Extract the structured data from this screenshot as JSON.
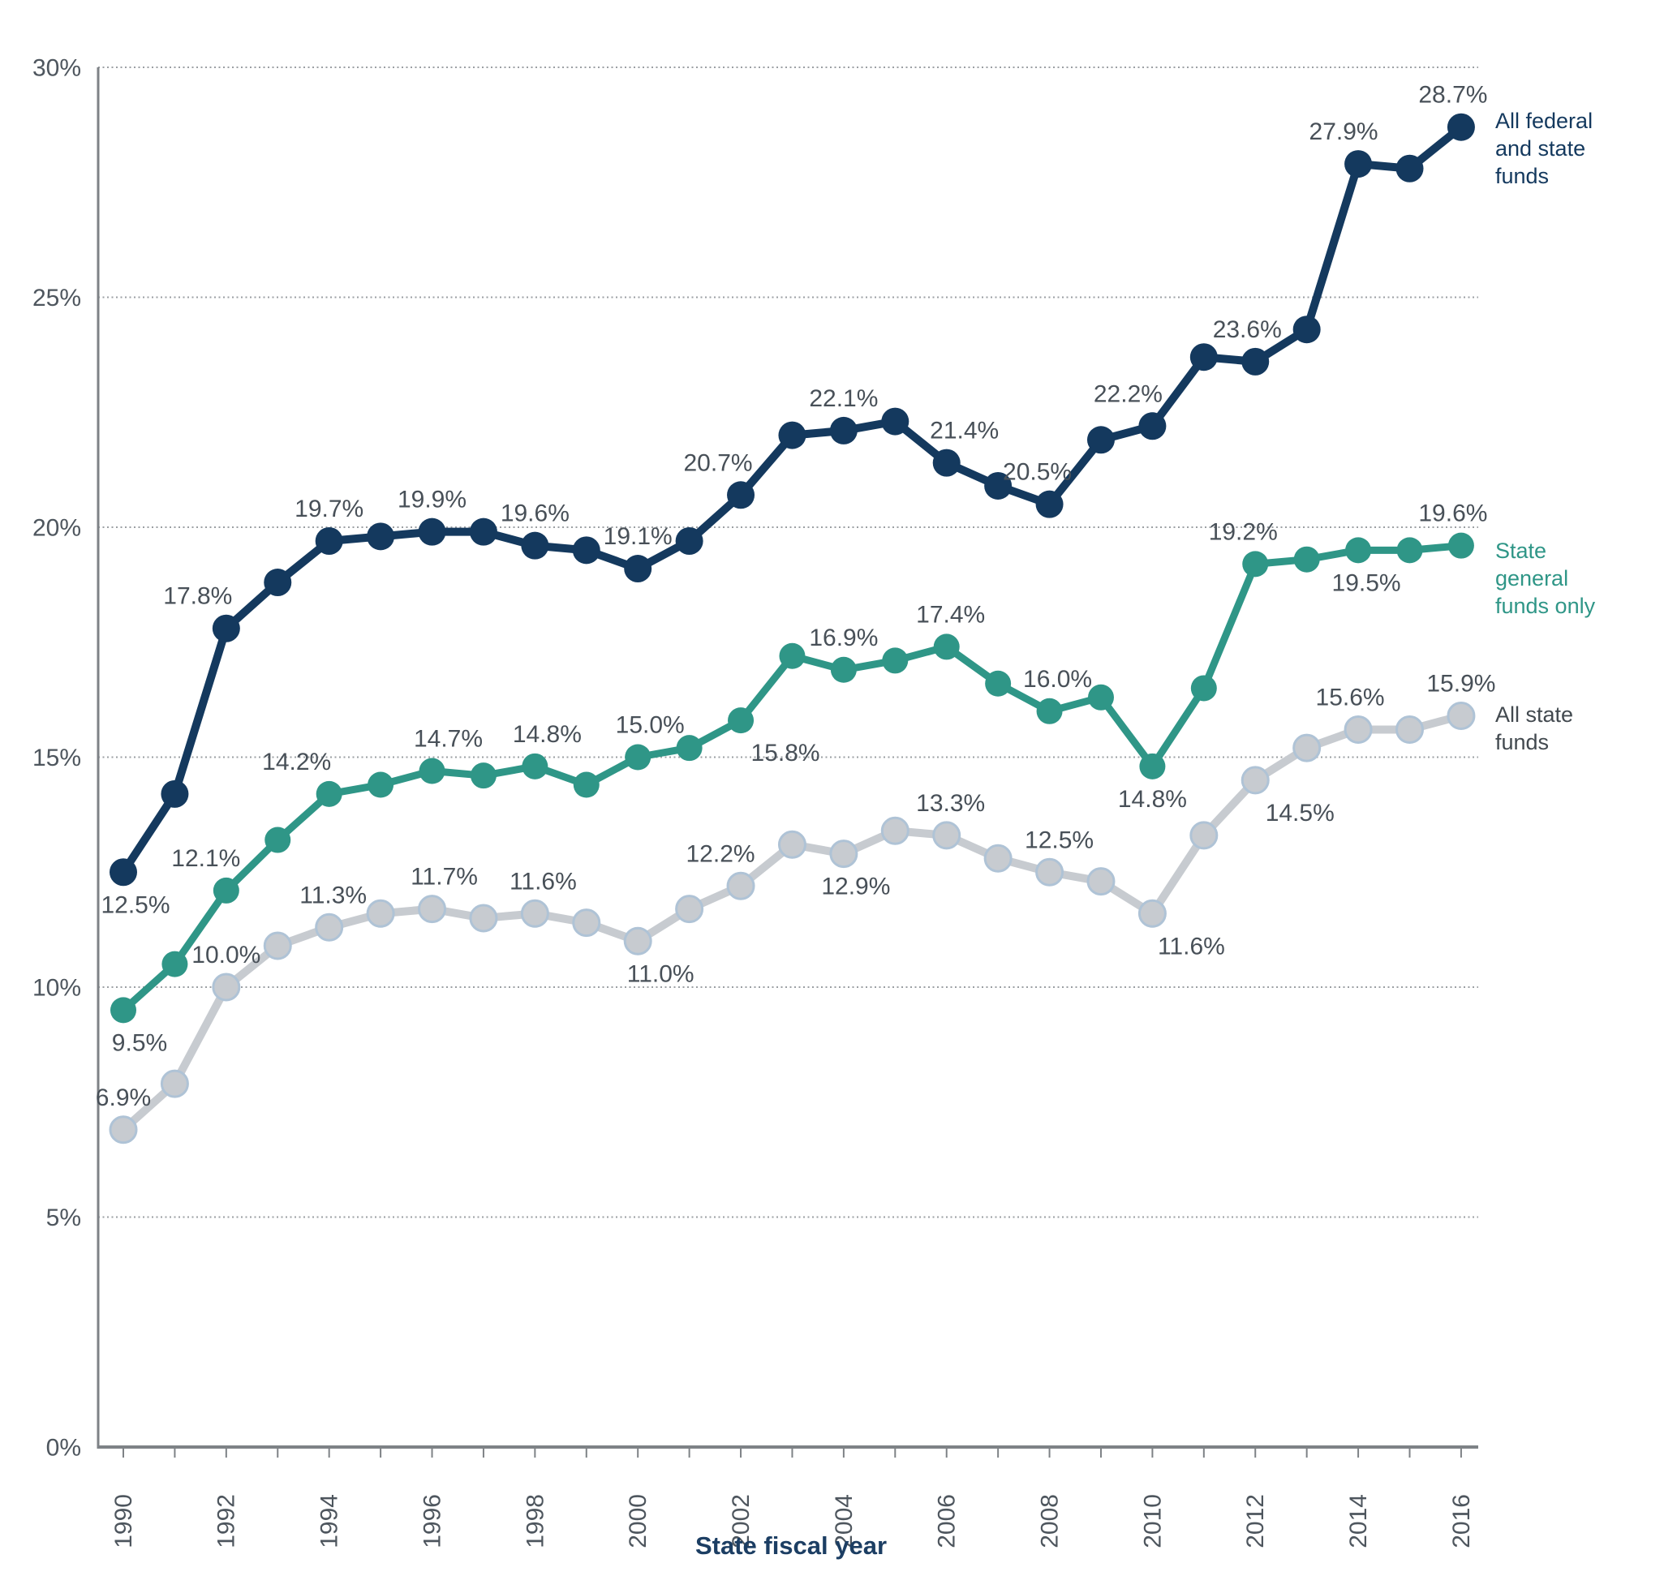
{
  "chart_data": {
    "type": "line",
    "title": "",
    "xlabel": "State fiscal year",
    "ylabel": "",
    "x": [
      1990,
      1991,
      1992,
      1993,
      1994,
      1995,
      1996,
      1997,
      1998,
      1999,
      2000,
      2001,
      2002,
      2003,
      2004,
      2005,
      2006,
      2007,
      2008,
      2009,
      2010,
      2011,
      2012,
      2013,
      2014,
      2015,
      2016
    ],
    "x_tick_labels": [
      "1990",
      "1992",
      "1994",
      "1996",
      "1998",
      "2000",
      "2002",
      "2004",
      "2006",
      "2008",
      "2010",
      "2012",
      "2014",
      "2016"
    ],
    "ylim": [
      0,
      30
    ],
    "y_ticks": [
      0,
      5,
      10,
      15,
      20,
      25,
      30
    ],
    "y_tick_labels": [
      "0%",
      "5%",
      "10%",
      "15%",
      "20%",
      "25%",
      "30%"
    ],
    "grid": "horizontal dotted gridlines every 5%, solid gray x and y axis lines, year ticks every year",
    "legend_position": "right end of each line",
    "series": [
      {
        "name": "All federal and state funds",
        "label_lines": [
          "All federal",
          "and state",
          "funds"
        ],
        "color": "#14395E",
        "label_color": "#14395E",
        "marker_stroke": "#14395E",
        "values": [
          12.5,
          14.2,
          17.8,
          18.8,
          19.7,
          19.8,
          19.9,
          19.9,
          19.6,
          19.5,
          19.1,
          19.7,
          20.7,
          22.0,
          22.1,
          22.3,
          21.4,
          20.9,
          20.5,
          21.9,
          22.2,
          23.7,
          23.6,
          24.3,
          27.9,
          27.8,
          28.7
        ],
        "point_labels": [
          {
            "year": 1990,
            "text": "12.5%",
            "pos": "below",
            "dx": 15
          },
          {
            "year": 1992,
            "text": "17.8%",
            "pos": "above",
            "dx": -35
          },
          {
            "year": 1994,
            "text": "19.7%",
            "pos": "above",
            "dx": 0
          },
          {
            "year": 1996,
            "text": "19.9%",
            "pos": "above",
            "dx": 0
          },
          {
            "year": 1998,
            "text": "19.6%",
            "pos": "above",
            "dx": 0
          },
          {
            "year": 2000,
            "text": "19.1%",
            "pos": "above",
            "dx": 0
          },
          {
            "year": 2002,
            "text": "20.7%",
            "pos": "above",
            "dx": -28
          },
          {
            "year": 2004,
            "text": "22.1%",
            "pos": "above",
            "dx": 0
          },
          {
            "year": 2006,
            "text": "21.4%",
            "pos": "above",
            "dx": 22
          },
          {
            "year": 2008,
            "text": "20.5%",
            "pos": "above",
            "dx": -15
          },
          {
            "year": 2010,
            "text": "22.2%",
            "pos": "above",
            "dx": -30
          },
          {
            "year": 2012,
            "text": "23.6%",
            "pos": "above",
            "dx": -10
          },
          {
            "year": 2014,
            "text": "27.9%",
            "pos": "above",
            "dx": -18
          },
          {
            "year": 2016,
            "text": "28.7%",
            "pos": "above",
            "dx": -10
          }
        ]
      },
      {
        "name": "State general funds only",
        "label_lines": [
          "State",
          "general",
          "funds only"
        ],
        "color": "#2F9687",
        "label_color": "#2F9687",
        "marker_stroke": "#2F9687",
        "values": [
          9.5,
          10.5,
          12.1,
          13.2,
          14.2,
          14.4,
          14.7,
          14.6,
          14.8,
          14.4,
          15.0,
          15.2,
          15.8,
          17.2,
          16.9,
          17.1,
          17.4,
          16.6,
          16.0,
          16.3,
          14.8,
          16.5,
          19.2,
          19.3,
          19.5,
          19.5,
          19.6
        ],
        "point_labels": [
          {
            "year": 1990,
            "text": "9.5%",
            "pos": "below",
            "dx": 20
          },
          {
            "year": 1992,
            "text": "12.1%",
            "pos": "above",
            "dx": -25
          },
          {
            "year": 1994,
            "text": "14.2%",
            "pos": "above",
            "dx": -40
          },
          {
            "year": 1996,
            "text": "14.7%",
            "pos": "above",
            "dx": 20
          },
          {
            "year": 1998,
            "text": "14.8%",
            "pos": "above",
            "dx": 15
          },
          {
            "year": 2000,
            "text": "15.0%",
            "pos": "above",
            "dx": 15
          },
          {
            "year": 2002,
            "text": "15.8%",
            "pos": "below",
            "dx": 55
          },
          {
            "year": 2004,
            "text": "16.9%",
            "pos": "above",
            "dx": 0
          },
          {
            "year": 2006,
            "text": "17.4%",
            "pos": "above",
            "dx": 5
          },
          {
            "year": 2008,
            "text": "16.0%",
            "pos": "above",
            "dx": 10
          },
          {
            "year": 2010,
            "text": "14.8%",
            "pos": "below",
            "dx": 0
          },
          {
            "year": 2012,
            "text": "19.2%",
            "pos": "above",
            "dx": -15
          },
          {
            "year": 2014,
            "text": "19.5%",
            "pos": "below",
            "dx": 10
          },
          {
            "year": 2016,
            "text": "19.6%",
            "pos": "above",
            "dx": -10
          }
        ]
      },
      {
        "name": "All state funds",
        "label_lines": [
          "All state",
          "funds"
        ],
        "color": "#C7CBD0",
        "label_color": "#42494F",
        "marker_stroke": "#AFC3D6",
        "values": [
          6.9,
          7.9,
          10.0,
          10.9,
          11.3,
          11.6,
          11.7,
          11.5,
          11.6,
          11.4,
          11.0,
          11.7,
          12.2,
          13.1,
          12.9,
          13.4,
          13.3,
          12.8,
          12.5,
          12.3,
          11.6,
          13.3,
          14.5,
          15.2,
          15.6,
          15.6,
          15.9
        ],
        "point_labels": [
          {
            "year": 1990,
            "text": "6.9%",
            "pos": "above",
            "dx": 0
          },
          {
            "year": 1992,
            "text": "10.0%",
            "pos": "above",
            "dx": 0
          },
          {
            "year": 1994,
            "text": "11.3%",
            "pos": "above",
            "dx": 5
          },
          {
            "year": 1996,
            "text": "11.7%",
            "pos": "above",
            "dx": 15
          },
          {
            "year": 1998,
            "text": "11.6%",
            "pos": "above",
            "dx": 10
          },
          {
            "year": 2000,
            "text": "11.0%",
            "pos": "below",
            "dx": 28
          },
          {
            "year": 2002,
            "text": "12.2%",
            "pos": "above",
            "dx": -25
          },
          {
            "year": 2004,
            "text": "12.9%",
            "pos": "below",
            "dx": 15
          },
          {
            "year": 2006,
            "text": "13.3%",
            "pos": "above",
            "dx": 5
          },
          {
            "year": 2008,
            "text": "12.5%",
            "pos": "above",
            "dx": 12
          },
          {
            "year": 2010,
            "text": "11.6%",
            "pos": "below",
            "dx": 48
          },
          {
            "year": 2012,
            "text": "14.5%",
            "pos": "below",
            "dx": 55
          },
          {
            "year": 2014,
            "text": "15.6%",
            "pos": "above",
            "dx": -10
          },
          {
            "year": 2016,
            "text": "15.9%",
            "pos": "above",
            "dx": 0
          }
        ]
      }
    ]
  },
  "colors": {
    "background": "#FFFFFF",
    "axis_line": "#7E8286",
    "gridline": "#9B9FA3",
    "tick_label": "#4E565E",
    "data_label": "#485058",
    "axis_title": "#1C3E63",
    "navy_series": "#14395E",
    "teal_series": "#2F9687",
    "gray_series": "#C7CBD0"
  }
}
